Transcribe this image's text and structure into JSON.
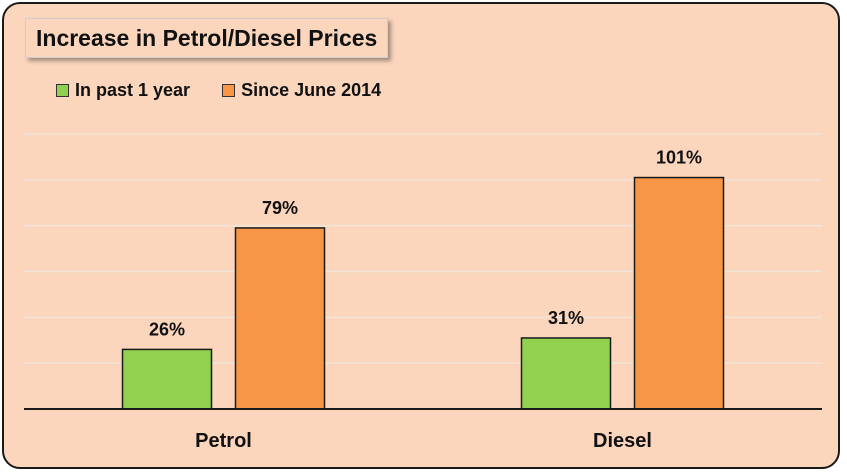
{
  "chart_data": {
    "type": "bar",
    "title": "Increase in Petrol/Diesel Prices",
    "categories": [
      "Petrol",
      "Diesel"
    ],
    "series": [
      {
        "name": "In past 1 year",
        "values": [
          26,
          31
        ],
        "labels": [
          "26%",
          "31%"
        ],
        "color": "#92d050"
      },
      {
        "name": "Since June 2014",
        "values": [
          79,
          101
        ],
        "labels": [
          "79%",
          "101%"
        ],
        "color": "#f79646"
      }
    ],
    "xlabel": "",
    "ylabel": "",
    "ylim": [
      0,
      120
    ],
    "grid": true,
    "legend_position": "top-left"
  }
}
